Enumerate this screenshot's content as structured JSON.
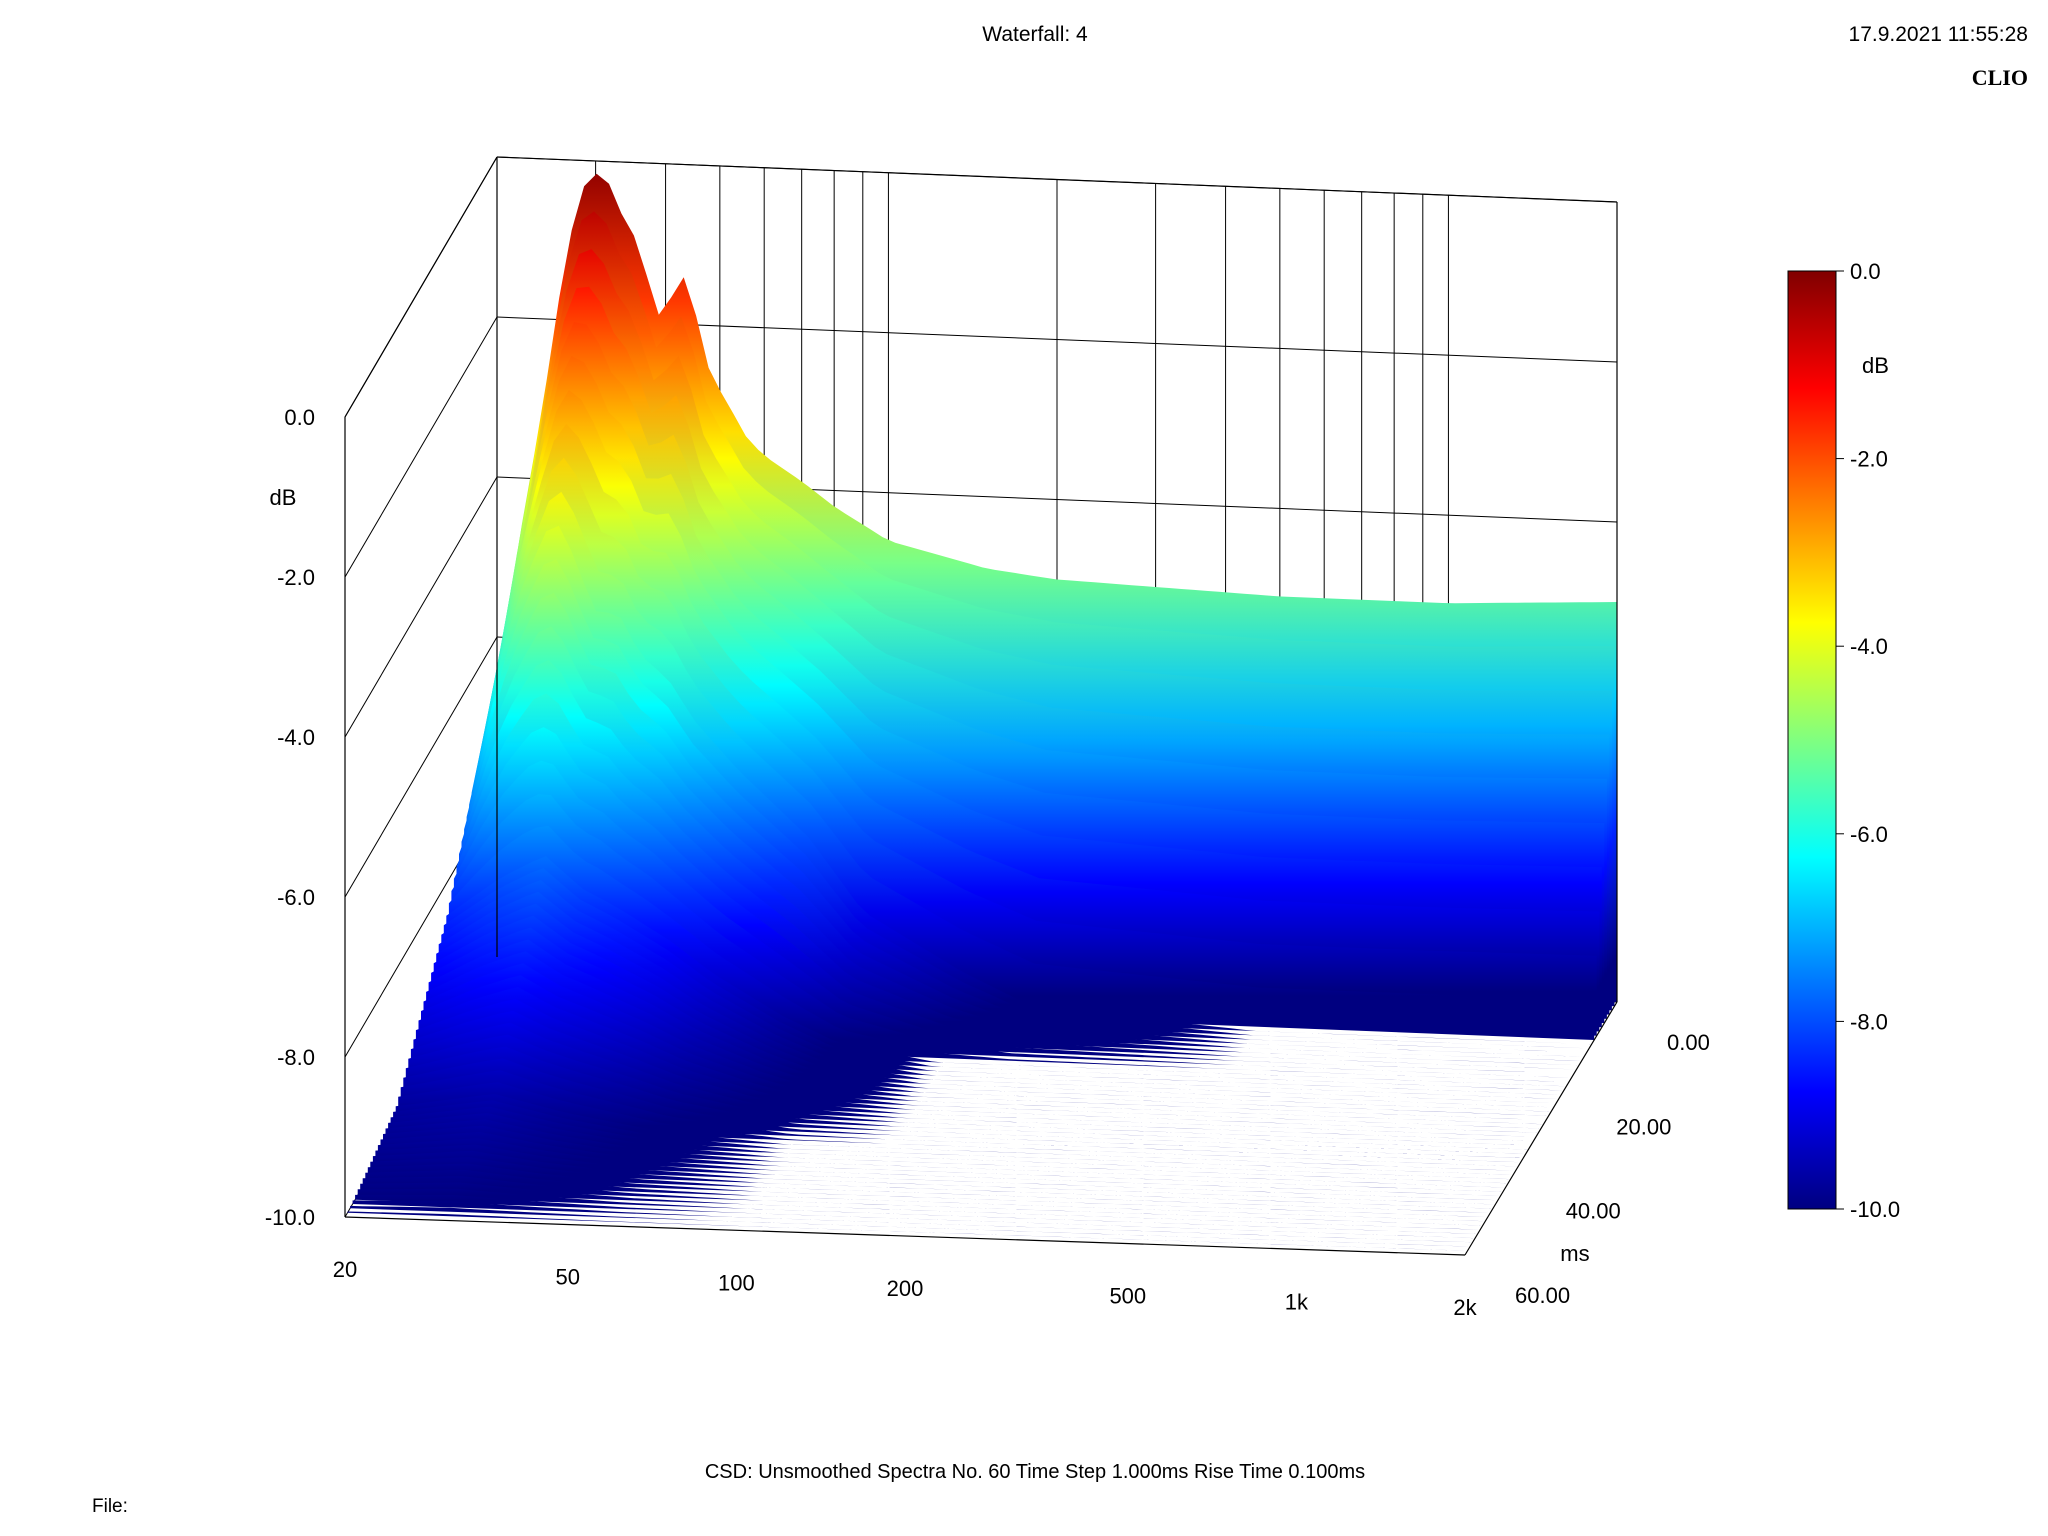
{
  "header": {
    "title": "Waterfall: 4",
    "timestamp": "17.9.2021 11:55:28",
    "brand": "CLIO"
  },
  "footer": {
    "settings": "CSD:   Unsmoothed   Spectra No. 60   Time Step 1.000ms   Rise Time 0.100ms",
    "file_label": "File:"
  },
  "colors": {
    "colormap": [
      "#000080",
      "#0000ff",
      "#0080ff",
      "#00ffff",
      "#80ff80",
      "#ffff00",
      "#ff8000",
      "#ff0000",
      "#800000"
    ]
  },
  "chart_data": {
    "type": "waterfall",
    "title": "Waterfall: 4",
    "x_axis": {
      "scale": "log",
      "range": [
        20,
        2000
      ],
      "ticks": [
        {
          "value": 20,
          "label": "20"
        },
        {
          "value": 50,
          "label": "50"
        },
        {
          "value": 100,
          "label": "100"
        },
        {
          "value": 200,
          "label": "200"
        },
        {
          "value": 500,
          "label": "500"
        },
        {
          "value": 1000,
          "label": "1k"
        },
        {
          "value": 2000,
          "label": "2k"
        }
      ]
    },
    "y_axis": {
      "unit": "dB",
      "range": [
        -10.0,
        0.0
      ],
      "ticks": [
        {
          "value": 0.0,
          "label": "0.0"
        },
        {
          "value": -2.0,
          "label": "-2.0"
        },
        {
          "value": -4.0,
          "label": "-4.0"
        },
        {
          "value": -6.0,
          "label": "-6.0"
        },
        {
          "value": -8.0,
          "label": "-8.0"
        },
        {
          "value": -10.0,
          "label": "-10.0"
        }
      ]
    },
    "z_axis": {
      "unit": "ms",
      "range": [
        0,
        60
      ],
      "ticks": [
        {
          "value": 0,
          "label": "0.00"
        },
        {
          "value": 20,
          "label": "20.00"
        },
        {
          "value": 40,
          "label": "40.00"
        },
        {
          "value": 60,
          "label": "60.00"
        }
      ]
    },
    "colorbar": {
      "unit": "dB",
      "range": [
        -10.0,
        0.0
      ],
      "ticks": [
        {
          "value": 0.0,
          "label": "0.0"
        },
        {
          "value": -2.0,
          "label": "-2.0"
        },
        {
          "value": -4.0,
          "label": "-4.0"
        },
        {
          "value": -6.0,
          "label": "-6.0"
        },
        {
          "value": -8.0,
          "label": "-8.0"
        },
        {
          "value": -10.0,
          "label": "-10.0"
        }
      ]
    },
    "settings": {
      "smoothing": "Unsmoothed",
      "spectra_count": 60,
      "time_step_ms": 1.0,
      "rise_time_ms": 0.1
    },
    "series": [
      {
        "time_ms": 0,
        "points": [
          [
            20,
            -6.6
          ],
          [
            22,
            -4.7
          ],
          [
            24,
            -3.2
          ],
          [
            26,
            -1.6
          ],
          [
            28,
            -0.4
          ],
          [
            30,
            -0.15
          ],
          [
            32,
            -0.3
          ],
          [
            34,
            -0.8
          ],
          [
            36,
            -1.0
          ],
          [
            38,
            -1.8
          ],
          [
            40,
            -2.0
          ],
          [
            42,
            -1.3
          ],
          [
            44,
            -1.5
          ],
          [
            48,
            -2.6
          ],
          [
            52,
            -3.0
          ],
          [
            56,
            -3.4
          ],
          [
            60,
            -3.6
          ],
          [
            70,
            -3.9
          ],
          [
            80,
            -4.2
          ],
          [
            100,
            -4.6
          ],
          [
            150,
            -4.9
          ],
          [
            200,
            -5.0
          ],
          [
            500,
            -5.1
          ],
          [
            1000,
            -5.1
          ],
          [
            2000,
            -5.0
          ]
        ]
      },
      {
        "time_ms": 10,
        "points": [
          [
            20,
            -7.4
          ],
          [
            22,
            -6.0
          ],
          [
            24,
            -5.0
          ],
          [
            26,
            -4.4
          ],
          [
            28,
            -3.9
          ],
          [
            30,
            -4.3
          ],
          [
            32,
            -4.8
          ],
          [
            34,
            -5.2
          ],
          [
            36,
            -5.0
          ],
          [
            40,
            -5.6
          ],
          [
            45,
            -5.9
          ],
          [
            50,
            -6.4
          ],
          [
            60,
            -7.0
          ],
          [
            80,
            -7.8
          ],
          [
            100,
            -8.7
          ],
          [
            150,
            -9.4
          ],
          [
            200,
            -9.8
          ],
          [
            500,
            -10.0
          ],
          [
            2000,
            -10.0
          ]
        ]
      },
      {
        "time_ms": 20,
        "points": [
          [
            20,
            -8.4
          ],
          [
            25,
            -7.9
          ],
          [
            30,
            -7.6
          ],
          [
            35,
            -8.0
          ],
          [
            40,
            -8.2
          ],
          [
            50,
            -8.6
          ],
          [
            60,
            -9.0
          ],
          [
            80,
            -9.5
          ],
          [
            100,
            -9.8
          ],
          [
            150,
            -10.0
          ],
          [
            2000,
            -10.0
          ]
        ]
      },
      {
        "time_ms": 40,
        "points": [
          [
            20,
            -9.7
          ],
          [
            30,
            -9.5
          ],
          [
            40,
            -9.7
          ],
          [
            60,
            -9.9
          ],
          [
            100,
            -10.0
          ],
          [
            2000,
            -10.0
          ]
        ]
      },
      {
        "time_ms": 60,
        "points": [
          [
            20,
            -10.0
          ],
          [
            2000,
            -10.0
          ]
        ]
      }
    ]
  }
}
